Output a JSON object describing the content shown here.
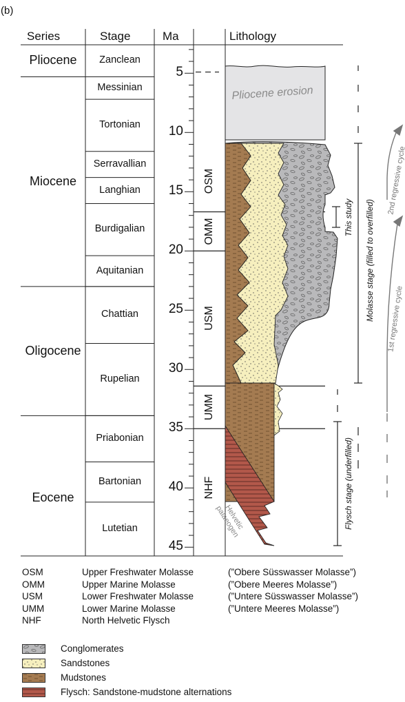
{
  "panel_label": "(b)",
  "headers": {
    "series": "Series",
    "stage": "Stage",
    "ma": "Ma",
    "lithology": "Lithology"
  },
  "series": [
    {
      "name": "Pliocene",
      "top_ma": 2.6,
      "bottom_ma": 5.3
    },
    {
      "name": "Miocene",
      "top_ma": 5.3,
      "bottom_ma": 23.0
    },
    {
      "name": "Oligocene",
      "top_ma": 23.0,
      "bottom_ma": 33.9
    },
    {
      "name": "Eocene",
      "top_ma": 33.9,
      "bottom_ma": 47.8
    }
  ],
  "stages": [
    {
      "name": "Zanclean",
      "top_ma": 2.6,
      "bottom_ma": 5.3
    },
    {
      "name": "Messinian",
      "top_ma": 5.3,
      "bottom_ma": 7.2
    },
    {
      "name": "Tortonian",
      "top_ma": 7.2,
      "bottom_ma": 11.6
    },
    {
      "name": "Serravallian",
      "top_ma": 11.6,
      "bottom_ma": 13.8
    },
    {
      "name": "Langhian",
      "top_ma": 13.8,
      "bottom_ma": 16.0
    },
    {
      "name": "Burdigalian",
      "top_ma": 16.0,
      "bottom_ma": 20.4
    },
    {
      "name": "Aquitanian",
      "top_ma": 20.4,
      "bottom_ma": 23.0
    },
    {
      "name": "Chattian",
      "top_ma": 23.0,
      "bottom_ma": 27.8
    },
    {
      "name": "Rupelian",
      "top_ma": 27.8,
      "bottom_ma": 33.9
    },
    {
      "name": "Priabonian",
      "top_ma": 33.9,
      "bottom_ma": 37.8
    },
    {
      "name": "Bartonian",
      "top_ma": 37.8,
      "bottom_ma": 41.2
    },
    {
      "name": "Lutetian",
      "top_ma": 41.2,
      "bottom_ma": 47.8
    }
  ],
  "ma_ticks": [
    "5",
    "10",
    "15",
    "20",
    "25",
    "30",
    "35",
    "40",
    "45"
  ],
  "units": [
    {
      "abbr": "OSM",
      "top_ma": 11.5,
      "bottom_ma": 16.7
    },
    {
      "abbr": "OMM",
      "top_ma": 16.7,
      "bottom_ma": 20.0
    },
    {
      "abbr": "USM",
      "top_ma": 20.0,
      "bottom_ma": 31.4
    },
    {
      "abbr": "UMM",
      "top_ma": 31.4,
      "bottom_ma": 35.0
    },
    {
      "abbr": "NHF",
      "top_ma": 35.0,
      "bottom_ma": 45.0
    }
  ],
  "lithology_labels": {
    "erosion": "Pliocene erosion",
    "helvetic": "Helvetic palaeogen"
  },
  "stage_annotations": {
    "this_study": "This study",
    "molasse": "Molasse stage (filled to overfilled)",
    "flysch": "Flysch stage (underfilled)",
    "cycle1": "1st regressive cycle",
    "cycle2": "2nd regressive cycle"
  },
  "legend_units": [
    {
      "abbr": "OSM",
      "en": "Upper Freshwater Molasse",
      "de": "(”Obere Süsswasser Molasse”)"
    },
    {
      "abbr": "OMM",
      "en": "Upper Marine Molasse",
      "de": "(”Obere Meeres Molasse”)"
    },
    {
      "abbr": "USM",
      "en": "Lower Freshwater Molasse",
      "de": "(”Untere Süsswasser Molasse”)"
    },
    {
      "abbr": "UMM",
      "en": "Lower Marine Molasse",
      "de": "(”Untere Meeres Molasse”)"
    },
    {
      "abbr": "NHF",
      "en": "North Helvetic Flysch",
      "de": ""
    }
  ],
  "legend_lithology": [
    {
      "label": "Conglomerates",
      "color": "#b9b9bb"
    },
    {
      "label": "Sandstones",
      "color": "#f6efbe"
    },
    {
      "label": "Mudstones",
      "color": "#a47b51"
    },
    {
      "label": "Flysch: Sandstone-mudstone alternations",
      "color": "#b2584a"
    }
  ]
}
